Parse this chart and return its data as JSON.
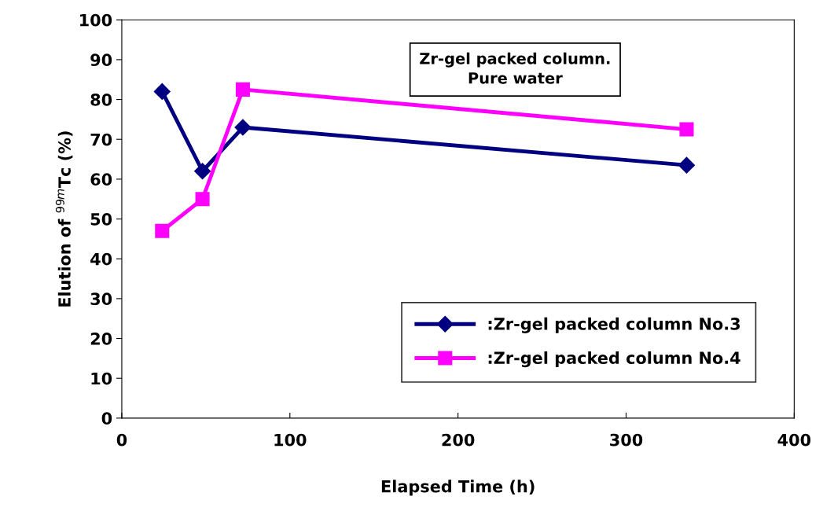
{
  "chart_data": {
    "type": "line",
    "xlabel": "Elapsed Time (h)",
    "ylabel": "Elution of $^{99m}$Tc (%)",
    "annotations": [
      "Zr-gel packed column.\nPure water"
    ],
    "x": [
      24,
      48,
      72,
      336
    ],
    "series": [
      {
        "name": ":Zr-gel packed column No.3",
        "color": "#000080",
        "marker": "diamond",
        "values": [
          82,
          62,
          73,
          63.5
        ]
      },
      {
        "name": ":Zr-gel packed column No.4",
        "color": "#ff00ff",
        "marker": "square",
        "values": [
          47,
          55,
          82.5,
          72.5
        ]
      }
    ],
    "xlim": [
      0,
      400
    ],
    "xticks": [
      0,
      100,
      200,
      300,
      400
    ],
    "ylim": [
      0,
      100
    ],
    "yticks": [
      0,
      10,
      20,
      30,
      40,
      50,
      60,
      70,
      80,
      90,
      100
    ],
    "grid": false,
    "legend": "bottom right",
    "line_style": "solid"
  }
}
